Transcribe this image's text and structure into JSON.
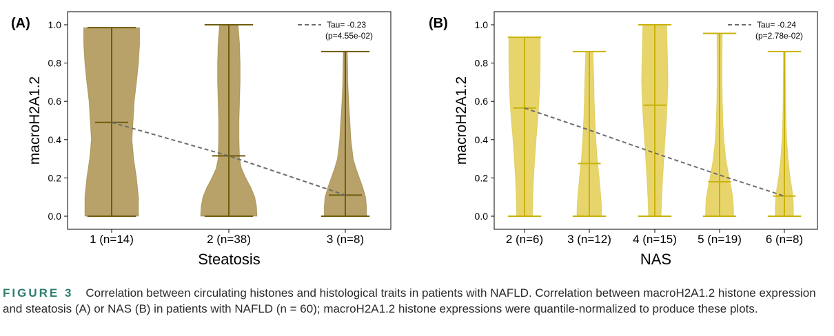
{
  "figure": {
    "label": "FIGURE 3",
    "caption": "Correlation between circulating histones and histological traits in patients with NAFLD. Correlation between macroH2A1.2 histone expression and steatosis (A) or NAS (B) in patients with NAFLD (n = 60); macroH2A1.2 histone expressions were quantile-normalized to produce these plots."
  },
  "chart_data": [
    {
      "type": "violin",
      "panel_label": "(A)",
      "xlabel": "Steatosis",
      "ylabel": "macroH2A1.2",
      "ylim": [
        0,
        1.0
      ],
      "yticks": [
        "0.0",
        "0.2",
        "0.4",
        "0.6",
        "0.8",
        "1.0"
      ],
      "color": "#b8a26a",
      "line_color": "#6e5c0c",
      "categories": [
        "1 (n=14)",
        "2 (n=38)",
        "3 (n=8)"
      ],
      "violins": [
        {
          "min": 0.0,
          "median": 0.49,
          "max": 0.985,
          "width_profile": [
            [
              0.0,
              0.95
            ],
            [
              0.1,
              0.95
            ],
            [
              0.2,
              0.88
            ],
            [
              0.3,
              0.78
            ],
            [
              0.4,
              0.72
            ],
            [
              0.5,
              0.76
            ],
            [
              0.6,
              0.8
            ],
            [
              0.7,
              0.88
            ],
            [
              0.8,
              0.95
            ],
            [
              0.9,
              0.99
            ],
            [
              0.985,
              0.99
            ]
          ]
        },
        {
          "min": 0.0,
          "median": 0.315,
          "max": 1.0,
          "width_profile": [
            [
              0.0,
              1.0
            ],
            [
              0.05,
              0.98
            ],
            [
              0.1,
              0.92
            ],
            [
              0.15,
              0.78
            ],
            [
              0.2,
              0.6
            ],
            [
              0.25,
              0.45
            ],
            [
              0.3,
              0.38
            ],
            [
              0.4,
              0.36
            ],
            [
              0.5,
              0.36
            ],
            [
              0.6,
              0.38
            ],
            [
              0.7,
              0.4
            ],
            [
              0.8,
              0.4
            ],
            [
              0.9,
              0.38
            ],
            [
              1.0,
              0.33
            ]
          ]
        },
        {
          "min": 0.0,
          "median": 0.11,
          "max": 0.86,
          "width_profile": [
            [
              0.0,
              0.75
            ],
            [
              0.05,
              0.75
            ],
            [
              0.1,
              0.72
            ],
            [
              0.15,
              0.62
            ],
            [
              0.2,
              0.5
            ],
            [
              0.25,
              0.38
            ],
            [
              0.3,
              0.28
            ],
            [
              0.4,
              0.2
            ],
            [
              0.5,
              0.16
            ],
            [
              0.6,
              0.12
            ],
            [
              0.7,
              0.09
            ],
            [
              0.8,
              0.08
            ],
            [
              0.86,
              0.07
            ]
          ]
        }
      ],
      "trend": {
        "name": "Tau= -0.23",
        "subtitle": "(p=4.55e-02)",
        "y": [
          0.49,
          0.315,
          0.11
        ]
      }
    },
    {
      "type": "violin",
      "panel_label": "(B)",
      "xlabel": "NAS",
      "ylabel": "macroH2A1.2",
      "ylim": [
        0,
        1.0
      ],
      "yticks": [
        "0.0",
        "0.2",
        "0.4",
        "0.6",
        "0.8",
        "1.0"
      ],
      "color": "#e7d56c",
      "line_color": "#c9b20a",
      "categories": [
        "2 (n=6)",
        "3 (n=12)",
        "4 (n=15)",
        "5 (n=19)",
        "6 (n=8)"
      ],
      "violins": [
        {
          "min": 0.0,
          "median": 0.565,
          "max": 0.935,
          "width_profile": [
            [
              0.0,
              0.48
            ],
            [
              0.1,
              0.5
            ],
            [
              0.2,
              0.55
            ],
            [
              0.3,
              0.62
            ],
            [
              0.4,
              0.7
            ],
            [
              0.5,
              0.8
            ],
            [
              0.6,
              0.88
            ],
            [
              0.7,
              0.93
            ],
            [
              0.8,
              0.95
            ],
            [
              0.935,
              0.95
            ]
          ]
        },
        {
          "min": 0.0,
          "median": 0.275,
          "max": 0.86,
          "width_profile": [
            [
              0.0,
              0.75
            ],
            [
              0.05,
              0.74
            ],
            [
              0.1,
              0.7
            ],
            [
              0.2,
              0.6
            ],
            [
              0.3,
              0.48
            ],
            [
              0.4,
              0.4
            ],
            [
              0.5,
              0.34
            ],
            [
              0.6,
              0.3
            ],
            [
              0.7,
              0.28
            ],
            [
              0.8,
              0.24
            ],
            [
              0.86,
              0.22
            ]
          ]
        },
        {
          "min": 0.0,
          "median": 0.58,
          "max": 1.0,
          "width_profile": [
            [
              0.0,
              0.38
            ],
            [
              0.1,
              0.42
            ],
            [
              0.2,
              0.48
            ],
            [
              0.3,
              0.55
            ],
            [
              0.4,
              0.62
            ],
            [
              0.5,
              0.7
            ],
            [
              0.6,
              0.76
            ],
            [
              0.7,
              0.8
            ],
            [
              0.8,
              0.78
            ],
            [
              0.9,
              0.75
            ],
            [
              1.0,
              0.72
            ]
          ]
        },
        {
          "min": 0.0,
          "median": 0.18,
          "max": 0.955,
          "width_profile": [
            [
              0.0,
              0.85
            ],
            [
              0.05,
              0.84
            ],
            [
              0.1,
              0.8
            ],
            [
              0.15,
              0.7
            ],
            [
              0.2,
              0.58
            ],
            [
              0.3,
              0.38
            ],
            [
              0.4,
              0.26
            ],
            [
              0.5,
              0.2
            ],
            [
              0.6,
              0.17
            ],
            [
              0.7,
              0.15
            ],
            [
              0.8,
              0.15
            ],
            [
              0.9,
              0.16
            ],
            [
              0.955,
              0.16
            ]
          ]
        },
        {
          "min": 0.0,
          "median": 0.105,
          "max": 0.86,
          "width_profile": [
            [
              0.0,
              0.55
            ],
            [
              0.05,
              0.55
            ],
            [
              0.1,
              0.52
            ],
            [
              0.15,
              0.45
            ],
            [
              0.2,
              0.35
            ],
            [
              0.3,
              0.22
            ],
            [
              0.4,
              0.14
            ],
            [
              0.5,
              0.1
            ],
            [
              0.6,
              0.08
            ],
            [
              0.7,
              0.07
            ],
            [
              0.8,
              0.06
            ],
            [
              0.86,
              0.06
            ]
          ]
        }
      ],
      "trend": {
        "name": "Tau= -0.24",
        "subtitle": "(p=2.78e-02)",
        "y": [
          0.565,
          0.45,
          0.33,
          0.215,
          0.105
        ]
      }
    }
  ]
}
